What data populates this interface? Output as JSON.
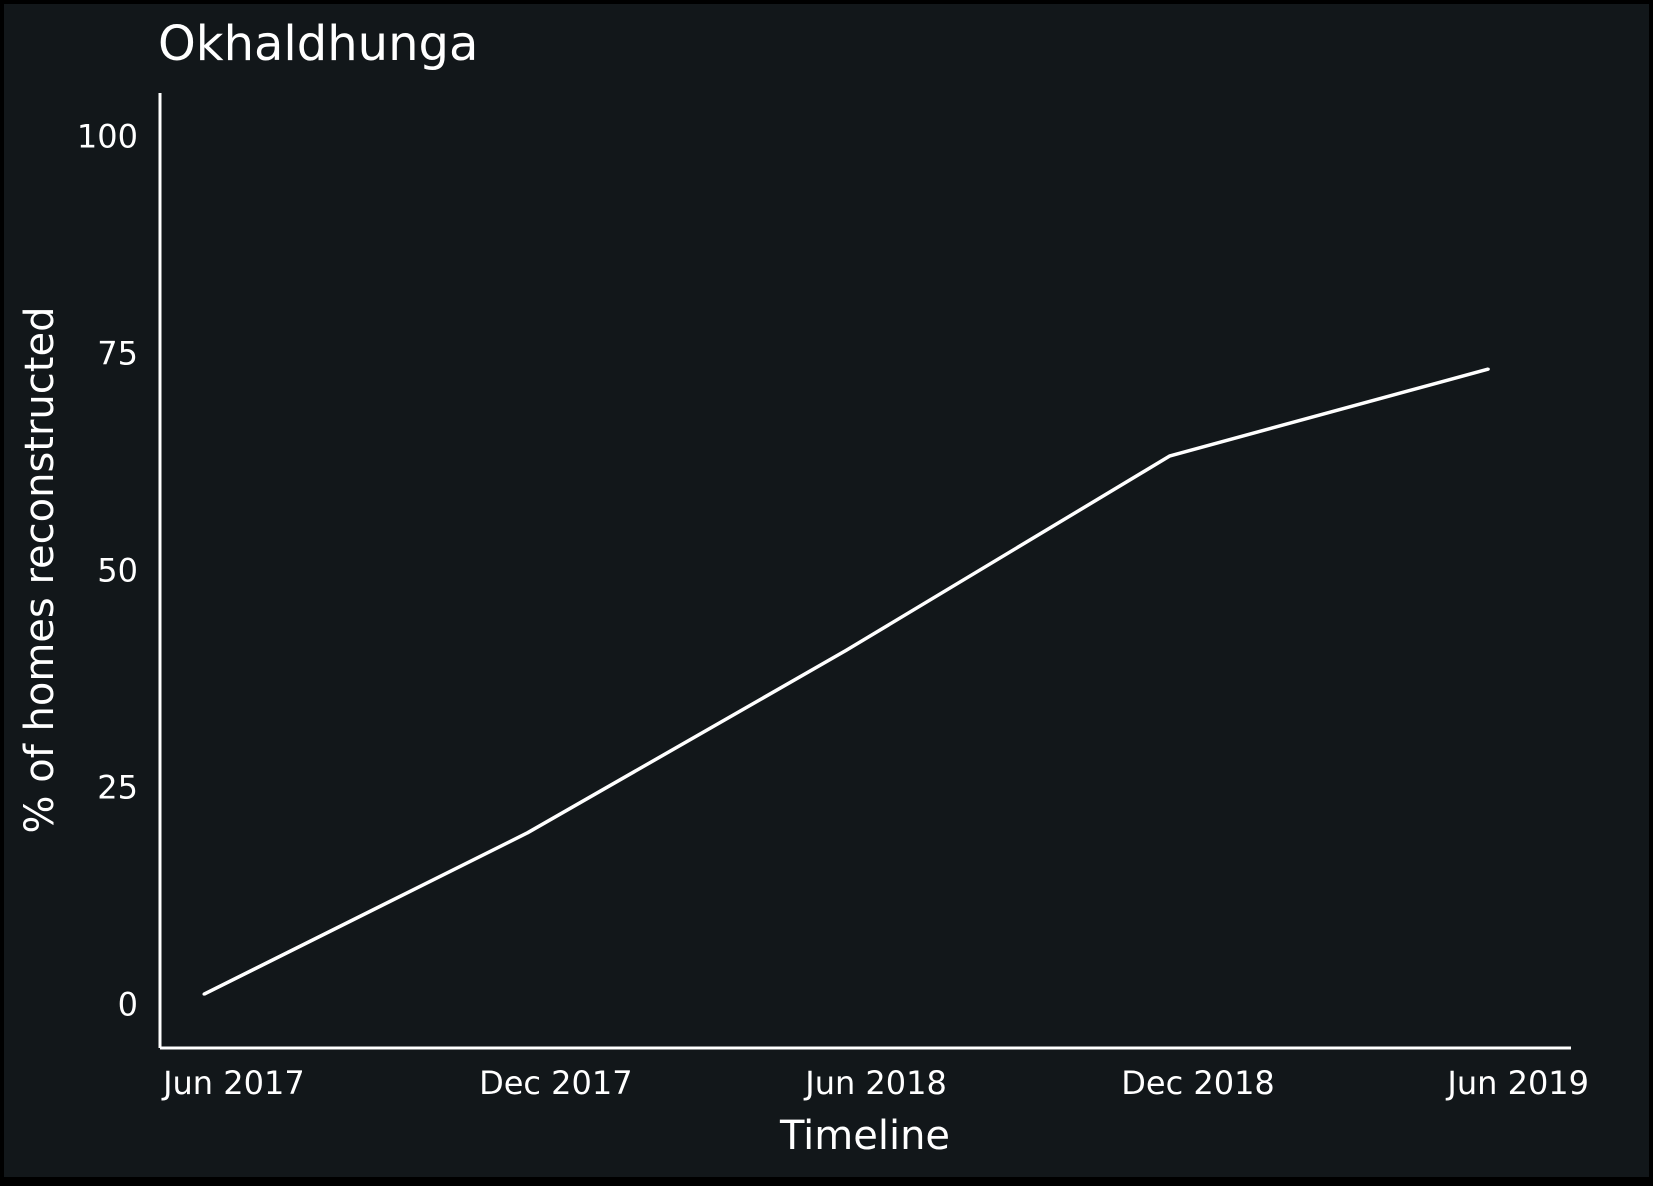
{
  "chart_data": {
    "type": "line",
    "title": "Okhaldhunga",
    "xlabel": "Timeline",
    "ylabel": "% of homes reconstructed",
    "x_tick_labels": [
      "Jun 2017",
      "Dec 2017",
      "Jun 2018",
      "Dec 2018",
      "Jun 2019"
    ],
    "y_tick_labels": [
      "0",
      "25",
      "50",
      "75",
      "100"
    ],
    "y_ticks": [
      0,
      25,
      50,
      75,
      100
    ],
    "ylim": [
      -5,
      105
    ],
    "xlim": [
      "2017-04-20",
      "2019-07-01"
    ],
    "x_tick_dates": [
      "2017-06-01",
      "2017-12-01",
      "2018-06-01",
      "2018-12-01",
      "2019-06-01"
    ],
    "grid": false,
    "series": [
      {
        "x": [
          "2017-05-15",
          "2017-11-15",
          "2018-05-15",
          "2018-11-15",
          "2019-05-15"
        ],
        "y": [
          1.2,
          19.8,
          40.8,
          63.2,
          73.2
        ]
      }
    ],
    "colors": {
      "background": "#000000",
      "panel": "#12171a",
      "foreground": "#ffffff",
      "line": "#ffffff"
    }
  }
}
